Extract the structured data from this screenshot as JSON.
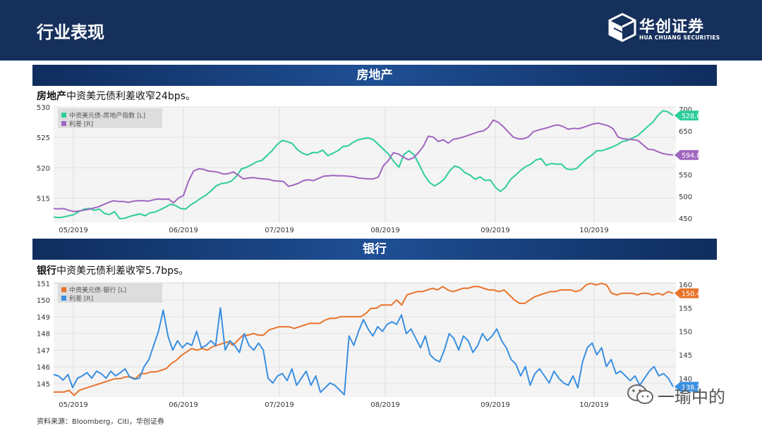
{
  "slide": {
    "title": "行业表现"
  },
  "logo": {
    "name": "华创证券",
    "sub": "HUA CHUANG SECURITIES",
    "icon": "cube-logo-icon"
  },
  "sections": [
    {
      "title": "房地产",
      "desc_bold": "房地产",
      "desc_rest": "中资美元债利差收窄24bps。"
    },
    {
      "title": "银行",
      "desc_bold": "银行",
      "desc_rest": "中资美元债利差收窄5.7bps。"
    }
  ],
  "source": "资料来源：Bloomberg，Citi，华创证券",
  "watermark": {
    "text": "一瑜中的",
    "icon": "wechat-icon"
  },
  "chart_data": [
    {
      "type": "line",
      "x_ticks": [
        "05/2019",
        "06/2019",
        "07/2019",
        "08/2019",
        "09/2019",
        "10/2019"
      ],
      "left_axis": {
        "ticks": [
          515,
          520,
          525,
          530
        ],
        "range": [
          511,
          530
        ]
      },
      "right_axis": {
        "ticks": [
          450,
          500,
          550,
          600,
          650,
          700
        ],
        "range": [
          440,
          705
        ]
      },
      "grid": true,
      "legend_position": "top-left",
      "series": [
        {
          "name": "中资美元债-房地产指数 [L]",
          "axis": "left",
          "color": "#2ecc9a",
          "last_label": "528.618",
          "values": [
            511.9,
            511.8,
            511.9,
            512.1,
            512.3,
            512.8,
            513.2,
            513.3,
            513.0,
            513.2,
            512.5,
            512.3,
            512.8,
            511.6,
            511.7,
            512.0,
            512.2,
            512.4,
            512.1,
            512.6,
            512.7,
            513.1,
            513.5,
            514.0,
            513.8,
            513.3,
            513.2,
            513.9,
            514.4,
            515.0,
            515.5,
            516.2,
            517.0,
            517.4,
            517.5,
            517.8,
            518.6,
            519.8,
            520.1,
            520.5,
            521.0,
            521.2,
            522.0,
            522.8,
            523.8,
            524.5,
            524.3,
            524.0,
            523.0,
            522.4,
            522.1,
            522.5,
            522.5,
            522.9,
            522.0,
            522.4,
            522.8,
            523.5,
            523.6,
            524.2,
            524.6,
            524.8,
            524.9,
            524.6,
            523.8,
            523.0,
            522.2,
            521.0,
            520.1,
            522.2,
            522.8,
            522.1,
            520.5,
            518.8,
            517.6,
            517.0,
            517.5,
            518.2,
            519.5,
            520.3,
            520.0,
            519.2,
            518.8,
            518.1,
            518.5,
            517.9,
            518.0,
            516.8,
            516.1,
            516.8,
            518.1,
            518.8,
            519.6,
            520.2,
            520.6,
            521.3,
            521.5,
            520.4,
            520.7,
            520.6,
            520.6,
            519.8,
            519.7,
            519.9,
            520.7,
            521.5,
            522.1,
            522.8,
            522.8,
            523.1,
            523.4,
            523.8,
            524.3,
            524.5,
            524.9,
            525.3,
            526.0,
            526.8,
            527.5,
            528.6,
            529.4,
            529.2,
            528.6
          ]
        },
        {
          "name": "利差 [R]",
          "axis": "right",
          "color": "#a066c0",
          "last_label": "594.807",
          "values": [
            472,
            471,
            472,
            468,
            465,
            466,
            468,
            470,
            473,
            476,
            481,
            486,
            490,
            488,
            488,
            486,
            489,
            490,
            490,
            489,
            492,
            494,
            493,
            494,
            485,
            496,
            502,
            535,
            558,
            563,
            562,
            558,
            557,
            555,
            551,
            552,
            556,
            548,
            540,
            542,
            543,
            541,
            540,
            539,
            536,
            535,
            534,
            523,
            526,
            530,
            536,
            538,
            536,
            541,
            546,
            547,
            548,
            547,
            547,
            546,
            545,
            542,
            541,
            540,
            540,
            544,
            570,
            582,
            600,
            597,
            590,
            584,
            588,
            600,
            615,
            638,
            636,
            626,
            630,
            622,
            631,
            633,
            636,
            640,
            644,
            648,
            650,
            658,
            675,
            670,
            660,
            648,
            636,
            632,
            632,
            636,
            648,
            652,
            655,
            658,
            662,
            664,
            660,
            654,
            656,
            655,
            658,
            662,
            666,
            668,
            665,
            662,
            655,
            636,
            632,
            631,
            630,
            628,
            618,
            608,
            607,
            602,
            598,
            596,
            594.8
          ]
        }
      ]
    },
    {
      "type": "line",
      "x_ticks": [
        "05/2019",
        "06/2019",
        "07/2019",
        "08/2019",
        "09/2019",
        "10/2019"
      ],
      "left_axis": {
        "ticks": [
          145,
          146,
          147,
          148,
          149,
          150,
          151
        ],
        "range": [
          144.2,
          151.1
        ]
      },
      "right_axis": {
        "ticks": [
          140,
          145,
          150,
          155,
          160
        ],
        "range": [
          136.0,
          160.6
        ]
      },
      "grid": true,
      "legend_position": "top-left",
      "series": [
        {
          "name": "中资美元债-银行 [L]",
          "axis": "left",
          "color": "#e8742c",
          "last_label": "150.418",
          "values": [
            144.5,
            144.5,
            144.5,
            144.6,
            144.3,
            144.6,
            144.7,
            144.8,
            144.9,
            145.0,
            145.1,
            145.2,
            145.3,
            145.3,
            145.4,
            145.4,
            145.3,
            145.6,
            145.6,
            145.7,
            145.7,
            145.8,
            145.9,
            146.2,
            146.4,
            146.7,
            146.9,
            147.1,
            147.0,
            147.1,
            147.0,
            147.2,
            147.3,
            147.4,
            147.5,
            147.3,
            147.6,
            147.9,
            147.9,
            148.0,
            147.9,
            147.9,
            148.2,
            148.3,
            148.4,
            148.4,
            148.4,
            148.3,
            148.4,
            148.5,
            148.6,
            148.6,
            148.6,
            148.8,
            148.9,
            148.9,
            149.0,
            149.0,
            149.0,
            149.0,
            149.0,
            149.2,
            149.5,
            149.5,
            149.7,
            149.7,
            149.7,
            150.0,
            149.7,
            150.3,
            150.4,
            150.5,
            150.5,
            150.6,
            150.7,
            150.6,
            150.8,
            150.6,
            150.5,
            150.6,
            150.7,
            150.7,
            150.8,
            150.8,
            150.7,
            150.6,
            150.6,
            150.5,
            150.6,
            150.3,
            150.0,
            149.8,
            149.8,
            150.0,
            150.2,
            150.3,
            150.4,
            150.5,
            150.5,
            150.6,
            150.6,
            150.6,
            150.5,
            150.6,
            150.9,
            151.0,
            150.9,
            151.0,
            150.9,
            150.4,
            150.3,
            150.4,
            150.4,
            150.4,
            150.3,
            150.4,
            150.4,
            150.3,
            150.4,
            150.3,
            150.5,
            150.4
          ]
        },
        {
          "name": "利差 [R]",
          "axis": "right",
          "color": "#3a8fe0",
          "last_label": "138.221",
          "values": [
            140.8,
            140.5,
            139.6,
            140.8,
            138.0,
            140.0,
            140.5,
            141.2,
            140.0,
            141.5,
            141.0,
            140.0,
            141.5,
            140.5,
            141.2,
            142.0,
            140.2,
            139.8,
            140.0,
            142.5,
            144.0,
            147.0,
            150.0,
            154.5,
            149.0,
            146.0,
            148.0,
            146.5,
            147.5,
            147.0,
            150.0,
            146.5,
            147.0,
            148.0,
            147.0,
            155.0,
            146.0,
            148.0,
            147.0,
            145.5,
            149.5,
            147.0,
            146.0,
            147.5,
            146.0,
            140.0,
            139.0,
            140.5,
            141.0,
            139.5,
            142.0,
            138.5,
            140.0,
            141.5,
            138.5,
            140.5,
            137.0,
            138.0,
            139.0,
            138.5,
            137.5,
            136.5,
            149.0,
            147.0,
            150.0,
            152.5,
            150.5,
            149.0,
            151.0,
            150.0,
            151.5,
            152.0,
            151.5,
            153.5,
            149.5,
            150.5,
            148.5,
            146.5,
            149.0,
            145.0,
            144.0,
            143.5,
            146.0,
            149.5,
            148.5,
            146.0,
            149.0,
            148.0,
            145.5,
            147.0,
            149.5,
            148.0,
            149.0,
            150.5,
            148.0,
            146.5,
            144.0,
            143.0,
            140.5,
            142.5,
            138.5,
            141.0,
            142.0,
            140.5,
            139.0,
            141.5,
            140.0,
            139.0,
            138.5,
            140.5,
            138.0,
            143.5,
            146.5,
            147.5,
            145.0,
            146.5,
            142.5,
            144.0,
            141.0,
            141.5,
            140.5,
            139.5,
            140.5,
            138.5,
            140.0,
            141.5,
            142.5,
            140.5,
            141.0,
            140.0,
            138.2
          ]
        }
      ]
    }
  ]
}
